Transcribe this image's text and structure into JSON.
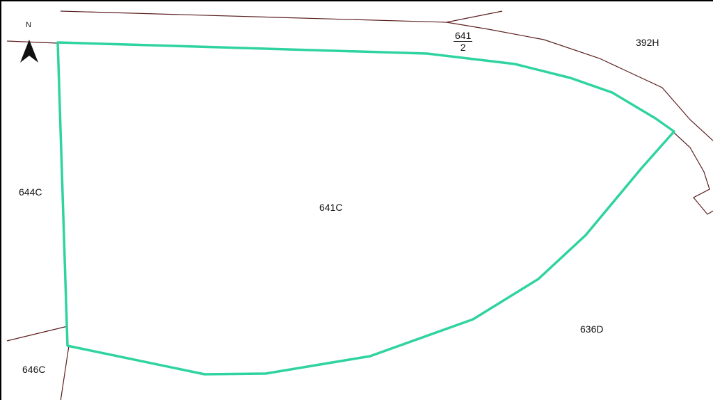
{
  "map": {
    "north_label": "N",
    "parcels": {
      "subject": "641C",
      "west": "644C",
      "southwest": "646C",
      "southeast": "636D",
      "northeast": "392H",
      "road_fraction": {
        "numerator": "641",
        "denominator": "2"
      }
    },
    "colors": {
      "subject_outline": "#2ED3A0",
      "parcel_lines": "#5A1E1E",
      "background": "#FFFFFF"
    }
  }
}
